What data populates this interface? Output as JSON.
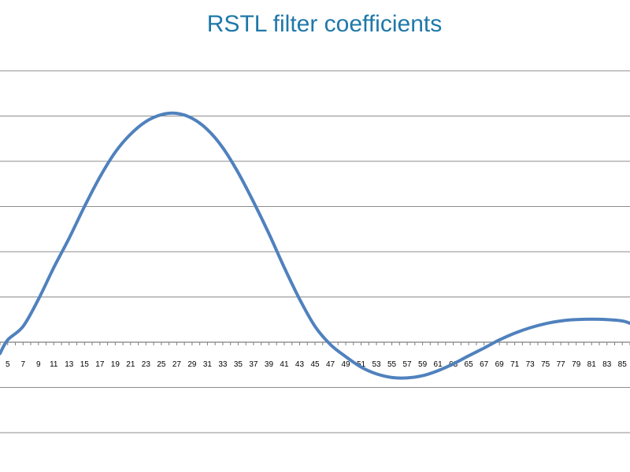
{
  "chart_data": {
    "type": "line",
    "title": "RSTL filter coefficients",
    "xlabel": "",
    "ylabel": "",
    "grid": true,
    "x_visible_range": [
      4,
      86
    ],
    "x_tick_labels": [
      "5",
      "7",
      "9",
      "11",
      "13",
      "15",
      "17",
      "19",
      "21",
      "23",
      "25",
      "27",
      "29",
      "31",
      "33",
      "35",
      "37",
      "39",
      "41",
      "43",
      "45",
      "47",
      "49",
      "51",
      "53",
      "55",
      "57",
      "59",
      "61",
      "63",
      "65",
      "67",
      "69",
      "71",
      "73",
      "75",
      "77",
      "79",
      "81",
      "83",
      "85"
    ],
    "series": [
      {
        "color": "#4f81bd",
        "points": [
          [
            4,
            -0.25
          ],
          [
            5,
            0.05
          ],
          [
            7,
            0.35
          ],
          [
            9,
            0.95
          ],
          [
            11,
            1.65
          ],
          [
            13,
            2.3
          ],
          [
            15,
            3.0
          ],
          [
            17,
            3.65
          ],
          [
            19,
            4.2
          ],
          [
            21,
            4.6
          ],
          [
            23,
            4.88
          ],
          [
            25,
            5.03
          ],
          [
            27,
            5.06
          ],
          [
            29,
            4.95
          ],
          [
            31,
            4.7
          ],
          [
            33,
            4.3
          ],
          [
            35,
            3.75
          ],
          [
            37,
            3.1
          ],
          [
            39,
            2.4
          ],
          [
            41,
            1.65
          ],
          [
            43,
            0.95
          ],
          [
            45,
            0.35
          ],
          [
            47,
            -0.05
          ],
          [
            49,
            -0.32
          ],
          [
            51,
            -0.55
          ],
          [
            53,
            -0.7
          ],
          [
            55,
            -0.78
          ],
          [
            57,
            -0.79
          ],
          [
            59,
            -0.74
          ],
          [
            61,
            -0.63
          ],
          [
            63,
            -0.48
          ],
          [
            65,
            -0.3
          ],
          [
            67,
            -0.13
          ],
          [
            69,
            0.05
          ],
          [
            71,
            0.2
          ],
          [
            73,
            0.32
          ],
          [
            75,
            0.41
          ],
          [
            77,
            0.47
          ],
          [
            79,
            0.5
          ],
          [
            81,
            0.51
          ],
          [
            83,
            0.5
          ],
          [
            85,
            0.47
          ],
          [
            86,
            0.42
          ]
        ]
      }
    ]
  }
}
